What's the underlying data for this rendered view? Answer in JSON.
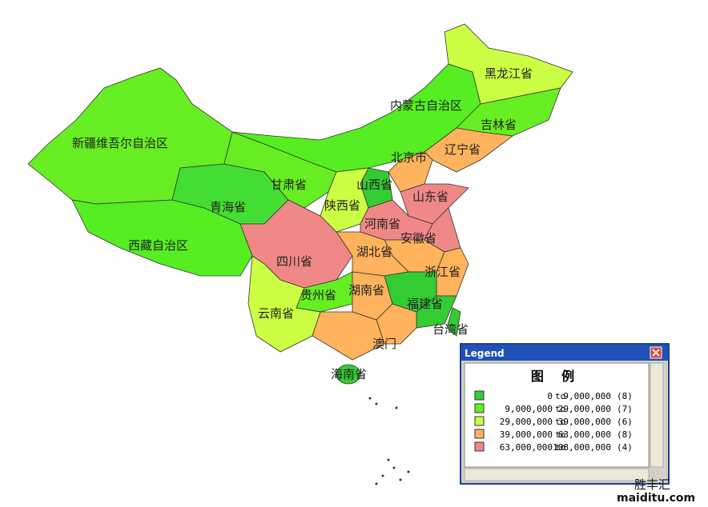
{
  "map": {
    "labels": [
      "黑龙江省",
      "内蒙古自治区",
      "吉林省",
      "新疆维吾尔自治区",
      "辽宁省",
      "北京市",
      "甘肃省",
      "山西省",
      "山东省",
      "青海省",
      "陕西省",
      "河南省",
      "安徽省",
      "西藏自治区",
      "四川省",
      "湖北省",
      "浙江省",
      "贵州省",
      "湖南省",
      "福建省",
      "云南省",
      "台湾省",
      "澳门",
      "海南省"
    ]
  },
  "legend": {
    "title": "Legend",
    "heading": "图    例",
    "connector": "to",
    "rows": [
      {
        "from": "0",
        "to": "9,000,000",
        "count": "(8)",
        "color": "#33cc33"
      },
      {
        "from": "9,000,000",
        "to": "29,000,000",
        "count": "(7)",
        "color": "#66ee22"
      },
      {
        "from": "29,000,000",
        "to": "39,000,000",
        "count": "(6)",
        "color": "#ccff44"
      },
      {
        "from": "39,000,000",
        "to": "63,000,000",
        "count": "(8)",
        "color": "#ffb35c"
      },
      {
        "from": "63,000,000",
        "to": "108,000,000",
        "count": "(4)",
        "color": "#f08888"
      }
    ]
  },
  "watermark": {
    "name": "胜丰汇",
    "site": "maiditu.com"
  }
}
